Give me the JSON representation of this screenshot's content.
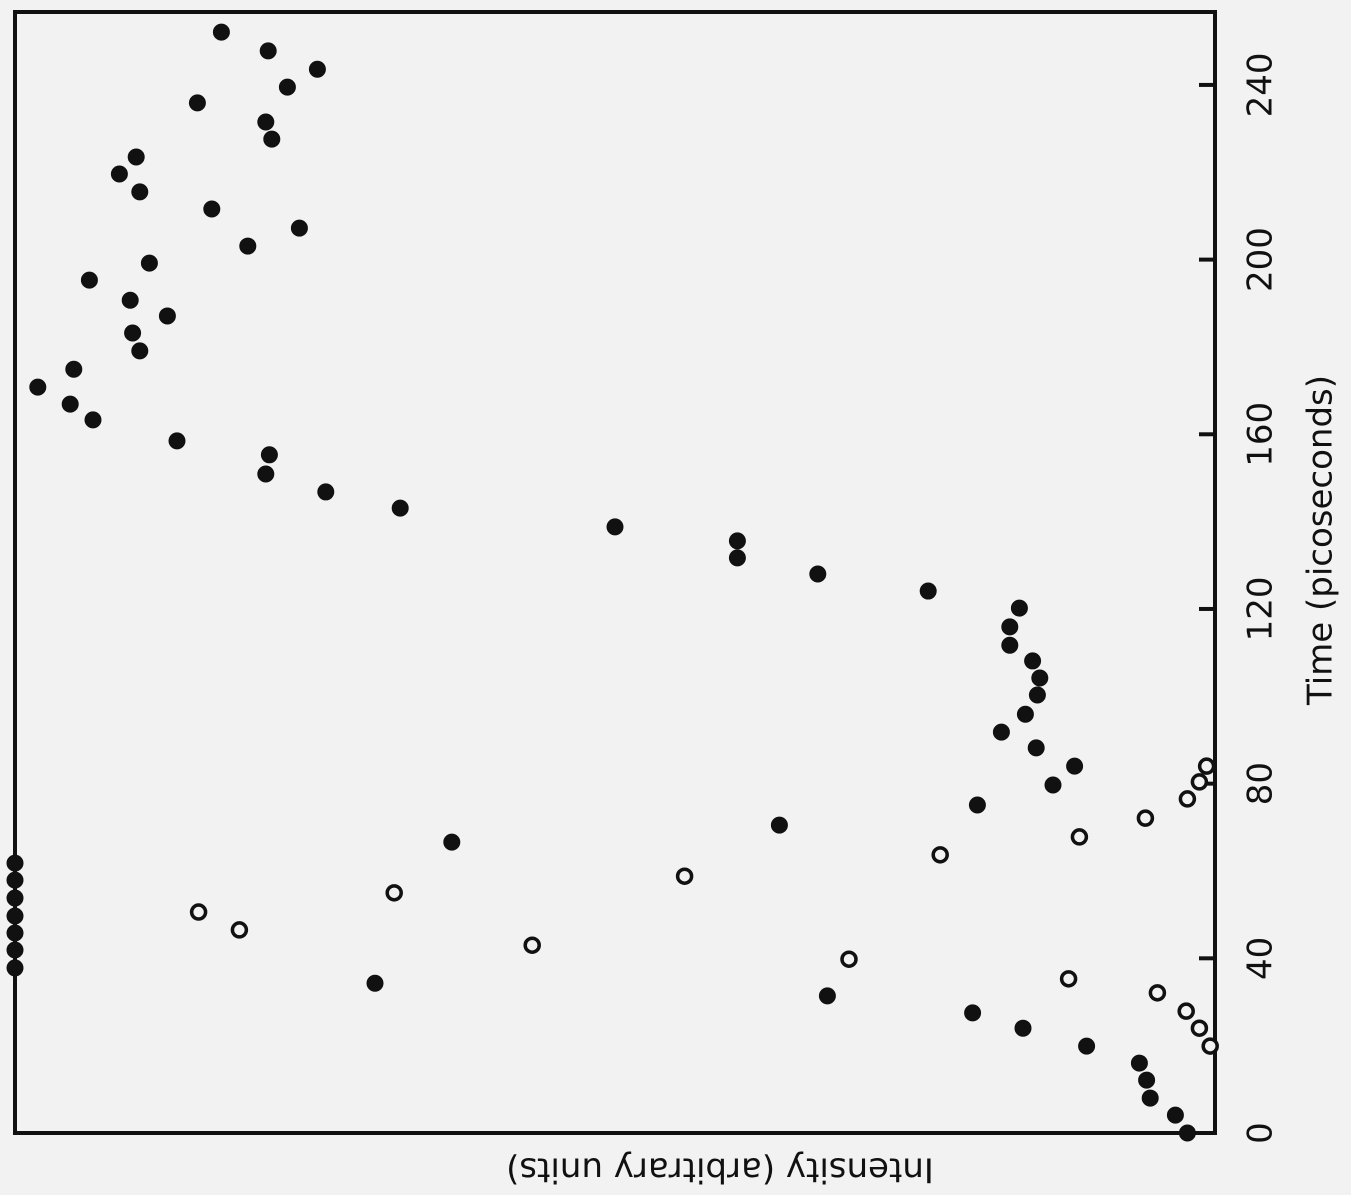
{
  "chart_data": {
    "type": "scatter",
    "xlabel": "Time (picoseconds)",
    "ylabel": "Intensity (arbitrary units)",
    "xlim": [
      0,
      256.7
    ],
    "xticks": [
      0,
      40,
      80,
      120,
      160,
      200,
      240
    ],
    "ylim": [
      0,
      100
    ],
    "color": "#111111",
    "series": [
      {
        "marker": "filled",
        "x": [
          0,
          4.1,
          8.0,
          12.1,
          16.0,
          19.9,
          24.0,
          27.5,
          31.4,
          34.3,
          37.8,
          41.9,
          45.8,
          49.7,
          53.8,
          57.9,
          61.8,
          66.6,
          70.5,
          75.1,
          79.7,
          84.0,
          88.2,
          91.8,
          95.9,
          100.3,
          104.2,
          108.1,
          111.7,
          115.9,
          120.2,
          124.1,
          128.0,
          131.7,
          135.6,
          138.8,
          143.1,
          146.8,
          150.9,
          155.3,
          158.5,
          163.3,
          166.9,
          170.8,
          174.9,
          179.1,
          183.2,
          187.1,
          190.7,
          195.3,
          199.2,
          203.1,
          207.2,
          211.6,
          215.5,
          219.6,
          223.5,
          227.6,
          231.5,
          235.9,
          239.5,
          243.6,
          247.8,
          252.1
        ],
        "values": [
          2.3,
          3.3,
          5.4,
          5.7,
          6.3,
          10.7,
          16.0,
          20.2,
          32.3,
          70.0,
          100,
          100,
          100,
          100,
          100,
          100,
          100,
          63.6,
          36.3,
          19.8,
          13.5,
          11.7,
          14.9,
          17.8,
          15.8,
          14.8,
          14.6,
          15.2,
          17.1,
          17.1,
          16.3,
          23.9,
          33.1,
          39.8,
          39.8,
          50.0,
          67.9,
          74.1,
          79.1,
          78.8,
          86.5,
          93.5,
          95.4,
          98.1,
          95.1,
          89.6,
          90.2,
          87.3,
          90.4,
          93.8,
          88.8,
          80.6,
          76.3,
          83.6,
          89.6,
          91.3,
          89.9,
          78.6,
          79.1,
          84.8,
          77.3,
          74.8,
          78.9,
          82.8
        ]
      },
      {
        "marker": "open",
        "x": [
          19.9,
          24.0,
          27.9,
          32.1,
          35.3,
          39.8,
          43.0,
          46.5,
          50.6,
          55.0,
          58.8,
          63.7,
          67.8,
          72.1,
          76.5,
          80.4,
          84.0
        ],
        "values": [
          0.4,
          1.3,
          2.4,
          4.8,
          12.2,
          30.5,
          56.9,
          81.3,
          84.7,
          68.4,
          44.2,
          22.9,
          11.3,
          5.8,
          2.3,
          1.3,
          0.7
        ]
      }
    ]
  }
}
